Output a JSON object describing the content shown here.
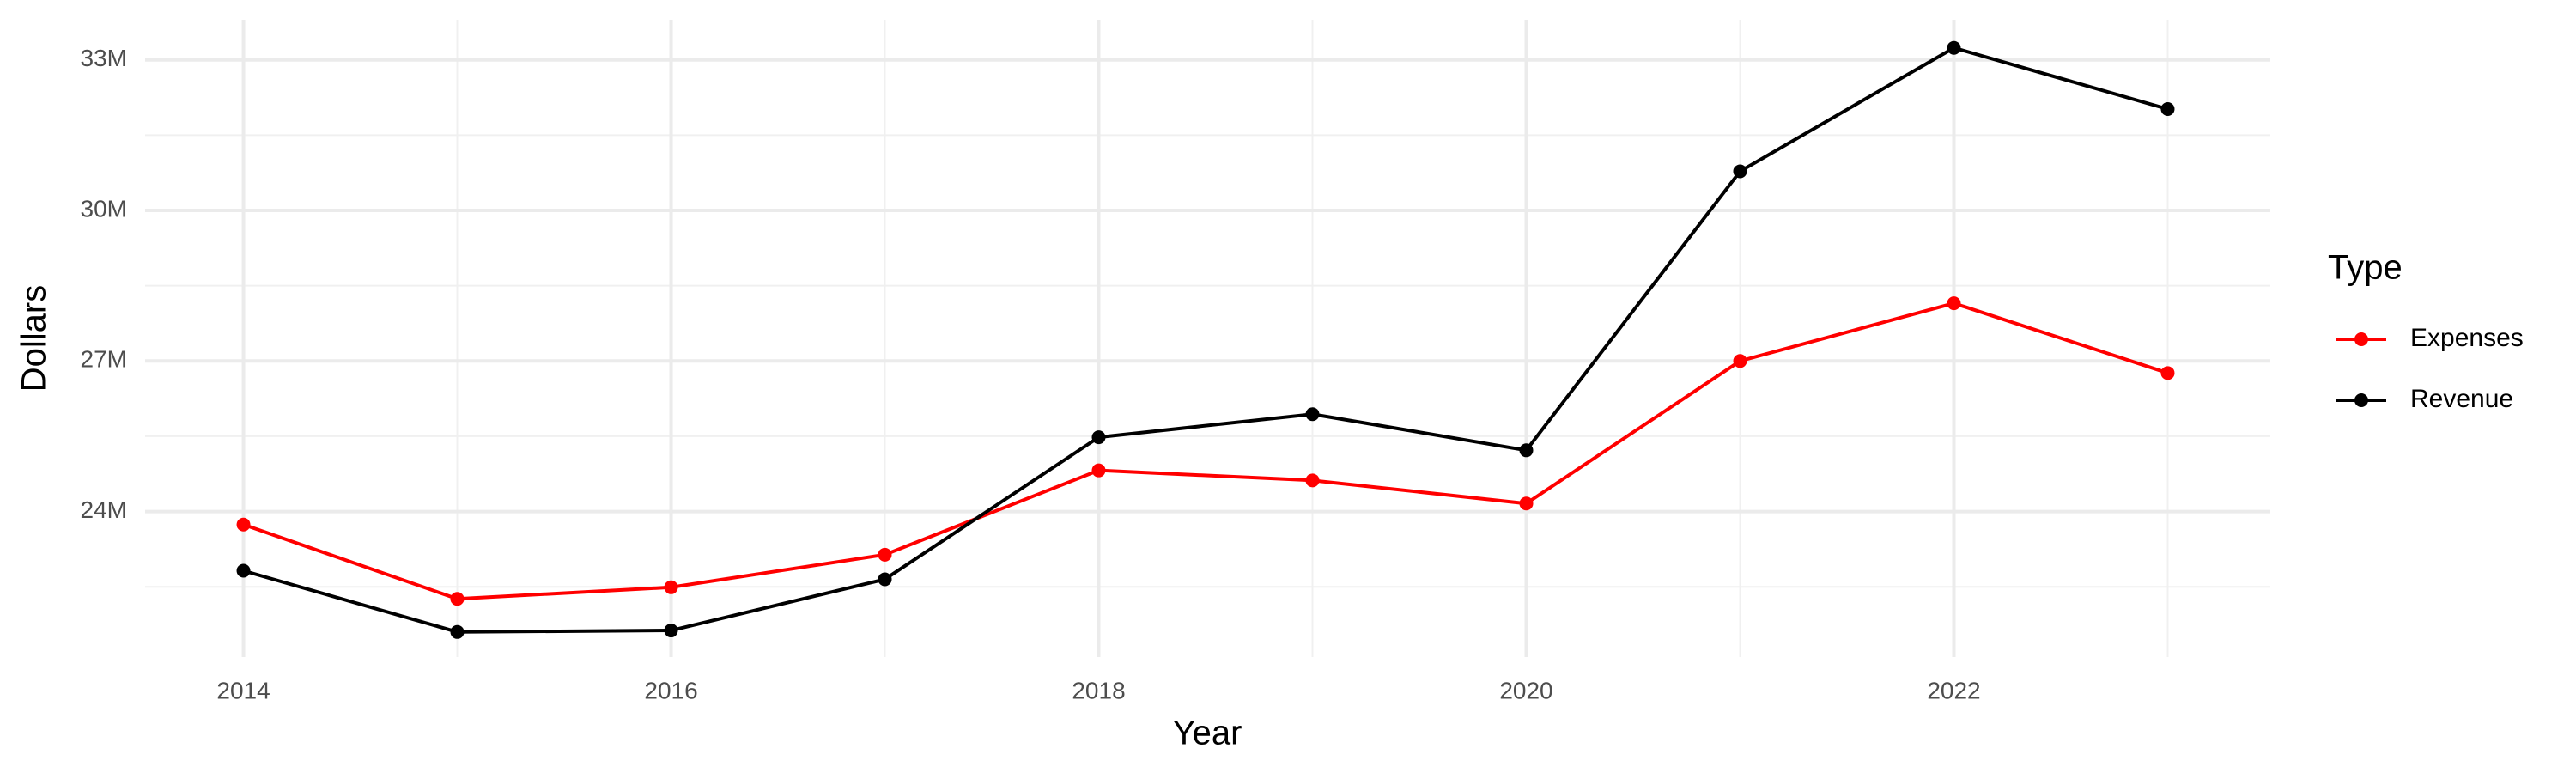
{
  "chart_data": {
    "type": "line",
    "x_label": "Year",
    "y_label": "Dollars",
    "legend_title": "Type",
    "legend_position": "right",
    "grid": true,
    "x": [
      2014,
      2015,
      2016,
      2017,
      2018,
      2019,
      2020,
      2021,
      2022,
      2023
    ],
    "series": [
      {
        "name": "Expenses",
        "color": "#ff0000",
        "values": [
          23740000,
          22260000,
          22490000,
          23140000,
          24820000,
          24620000,
          24160000,
          27000000,
          28150000,
          26760000
        ]
      },
      {
        "name": "Revenue",
        "color": "#000000",
        "values": [
          22820000,
          21600000,
          21630000,
          22650000,
          25480000,
          25940000,
          25220000,
          30780000,
          33240000,
          32020000
        ]
      }
    ],
    "xlim": [
      2013.54,
      2023.48
    ],
    "ylim": [
      21100000,
      33800000
    ],
    "xticks": [
      2014,
      2016,
      2018,
      2020,
      2022
    ],
    "x_minor_ticks": [
      2015,
      2017,
      2019,
      2021,
      2023
    ],
    "yticks": [
      {
        "value": 24000000,
        "label": "24M"
      },
      {
        "value": 27000000,
        "label": "27M"
      },
      {
        "value": 30000000,
        "label": "30M"
      },
      {
        "value": 33000000,
        "label": "33M"
      }
    ],
    "y_minor_ticks": [
      22500000,
      25500000,
      28500000,
      31500000
    ]
  }
}
